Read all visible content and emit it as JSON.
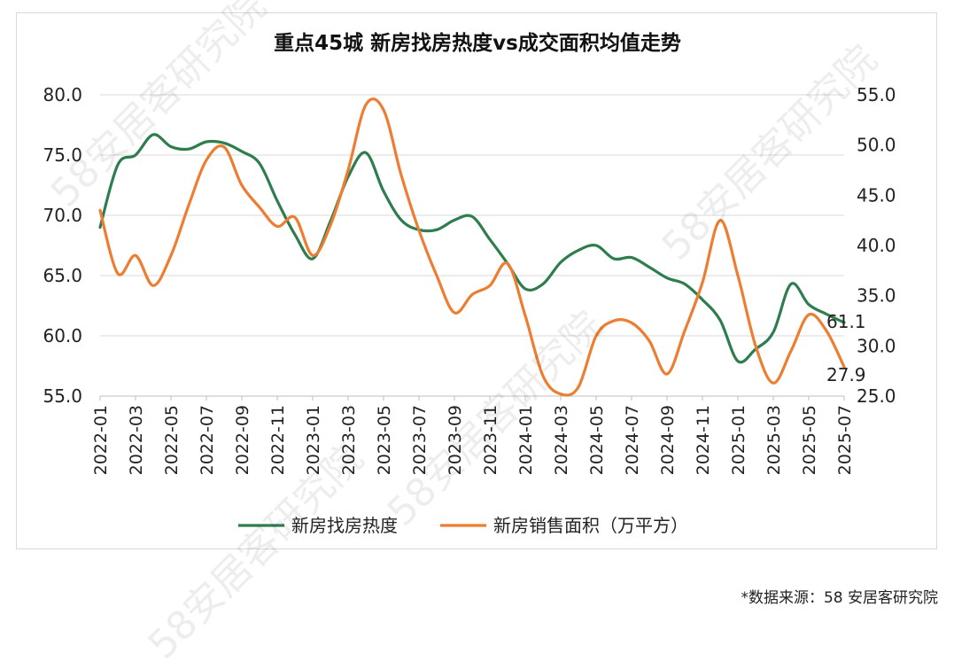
{
  "watermark": "58安居客研究院",
  "source_note": "*数据来源：58 安居客研究院",
  "chart_data": {
    "type": "line",
    "title": "重点45城 新房找房热度vs成交面积均值走势",
    "x": [
      "2022-01",
      "2022-02",
      "2022-03",
      "2022-04",
      "2022-05",
      "2022-06",
      "2022-07",
      "2022-08",
      "2022-09",
      "2022-10",
      "2022-11",
      "2022-12",
      "2023-01",
      "2023-02",
      "2023-03",
      "2023-04",
      "2023-05",
      "2023-06",
      "2023-07",
      "2023-08",
      "2023-09",
      "2023-10",
      "2023-11",
      "2023-12",
      "2024-01",
      "2024-02",
      "2024-03",
      "2024-04",
      "2024-05",
      "2024-06",
      "2024-07",
      "2024-08",
      "2024-09",
      "2024-10",
      "2024-11",
      "2024-12",
      "2025-01",
      "2025-02",
      "2025-03",
      "2025-04",
      "2025-05",
      "2025-06",
      "2025-07"
    ],
    "x_tick_labels": [
      "2022-01",
      "2022-03",
      "2022-05",
      "2022-07",
      "2022-09",
      "2022-11",
      "2023-01",
      "2023-03",
      "2023-05",
      "2023-07",
      "2023-09",
      "2023-11",
      "2024-01",
      "2024-03",
      "2024-05",
      "2024-07",
      "2024-09",
      "2024-11",
      "2025-01",
      "2025-03",
      "2025-05",
      "2025-07"
    ],
    "y_left": {
      "ylim": [
        55,
        80
      ],
      "ticks": [
        "55.0",
        "60.0",
        "65.0",
        "70.0",
        "75.0",
        "80.0"
      ]
    },
    "y_right": {
      "ylim": [
        25,
        55
      ],
      "ticks": [
        "25.0",
        "30.0",
        "35.0",
        "40.0",
        "45.0",
        "50.0",
        "55.0"
      ]
    },
    "grid": "horizontal",
    "legend_position": "bottom",
    "series": [
      {
        "name": "新房找房热度",
        "axis": "left",
        "color": "#2e7d4f",
        "values": [
          69.0,
          74.2,
          75.0,
          76.7,
          75.7,
          75.5,
          76.1,
          76.0,
          75.3,
          74.3,
          71.2,
          68.4,
          66.4,
          69.5,
          73.2,
          75.2,
          72.0,
          69.6,
          68.8,
          68.8,
          69.6,
          69.9,
          68.0,
          66.0,
          63.9,
          64.3,
          66.1,
          67.1,
          67.5,
          66.4,
          66.5,
          65.7,
          64.8,
          64.3,
          63.0,
          61.3,
          57.9,
          58.9,
          60.3,
          64.3,
          62.6,
          61.8,
          61.1
        ],
        "end_label": "61.1"
      },
      {
        "name": "新房销售面积（万平方）",
        "axis": "right",
        "color": "#ed7d31",
        "values": [
          43.5,
          37.2,
          39.0,
          36.0,
          39.0,
          44.0,
          48.5,
          49.8,
          46.0,
          43.8,
          41.9,
          42.8,
          39.0,
          42.0,
          47.5,
          54.0,
          53.5,
          47.0,
          41.5,
          37.0,
          33.3,
          35.1,
          36.0,
          38.2,
          33.0,
          27.0,
          25.2,
          25.9,
          31.0,
          32.5,
          32.3,
          30.5,
          27.2,
          31.5,
          36.3,
          42.5,
          37.0,
          30.0,
          26.3,
          29.5,
          33.1,
          31.5,
          27.9
        ],
        "end_label": "27.9"
      }
    ]
  }
}
